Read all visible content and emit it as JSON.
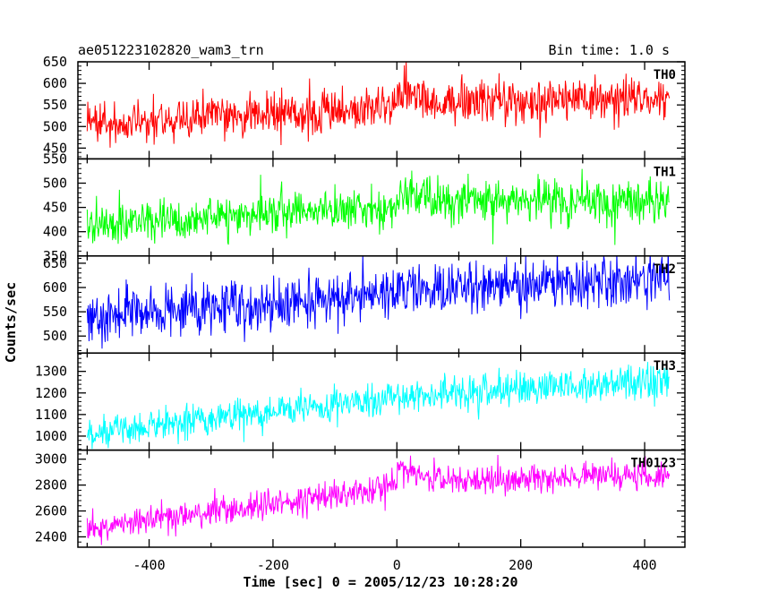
{
  "header": {
    "title": "ae051223102820_wam3_trn",
    "bin_time": "Bin time: 1.0 s"
  },
  "chart_data": {
    "type": "line",
    "xlabel": "Time [sec] 0 = 2005/12/23 10:28:20",
    "ylabel": "Counts/sec",
    "xlim": [
      -515,
      465
    ],
    "x_ticks": [
      -400,
      -200,
      0,
      200,
      400
    ],
    "x_range": [
      -500,
      440
    ],
    "bin_time_s": 1.0,
    "panels": [
      {
        "name": "TH0",
        "color": "#ff0000",
        "ylim": [
          425,
          650
        ],
        "y_ticks": [
          450,
          500,
          550,
          600,
          650
        ],
        "trend": [
          [
            -500,
            505
          ],
          [
            0,
            548
          ],
          [
            1,
            578
          ],
          [
            60,
            557
          ],
          [
            440,
            563
          ]
        ],
        "noise": 26
      },
      {
        "name": "TH1",
        "color": "#00ff00",
        "ylim": [
          350,
          550
        ],
        "y_ticks": [
          350,
          400,
          450,
          500,
          550
        ],
        "trend": [
          [
            -500,
            415
          ],
          [
            0,
            452
          ],
          [
            1,
            495
          ],
          [
            60,
            460
          ],
          [
            440,
            462
          ]
        ],
        "noise": 22
      },
      {
        "name": "TH2",
        "color": "#0000ff",
        "ylim": [
          465,
          665
        ],
        "y_ticks": [
          500,
          550,
          600,
          650
        ],
        "trend": [
          [
            -500,
            535
          ],
          [
            0,
            592
          ],
          [
            440,
            618
          ]
        ],
        "noise": 27
      },
      {
        "name": "TH3",
        "color": "#00ffff",
        "ylim": [
          935,
          1385
        ],
        "y_ticks": [
          1000,
          1100,
          1200,
          1300
        ],
        "trend": [
          [
            -500,
            1010
          ],
          [
            0,
            1185
          ],
          [
            440,
            1265
          ]
        ],
        "noise": 40
      },
      {
        "name": "TH0123",
        "color": "#ff00ff",
        "ylim": [
          2320,
          3070
        ],
        "y_ticks": [
          2400,
          2600,
          2800,
          3000
        ],
        "trend": [
          [
            -500,
            2455
          ],
          [
            0,
            2790
          ],
          [
            1,
            2935
          ],
          [
            60,
            2830
          ],
          [
            440,
            2885
          ]
        ],
        "noise": 55
      }
    ]
  }
}
